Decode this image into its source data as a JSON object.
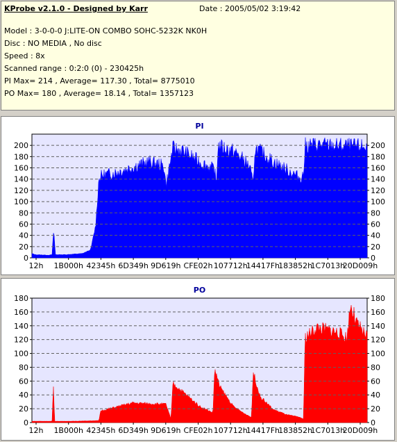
{
  "info": {
    "app_title": "KProbe v2.1.0 - Designed by Karr",
    "date": "Date : 2005/05/02 3:19:42",
    "model": "Model : 3-0-0-0 J:LITE-ON COMBO SOHC-5232K NK0H",
    "disc": "Disc : NO MEDIA , No disc",
    "speed": "Speed : 8x",
    "range": "Scanned range : 0:2:0 (0) - 230425h",
    "pi_stats": "PI Max= 214 , Average= 117.30 , Total= 8775010",
    "po_stats": "PO Max= 180 , Average= 18.14 , Total= 1357123"
  },
  "x_ticks": [
    "12h",
    "1B000h",
    "42345h",
    "6D349h",
    "9D619h",
    "CFE02h",
    "107712h",
    "14417Fh",
    "183852h",
    "1C7013h",
    "20D009h"
  ],
  "colors": {
    "pi": "#0000ff",
    "po": "#ff0000",
    "plot_bg": "#e6e6ff"
  },
  "chart_data": [
    {
      "type": "area",
      "title": "PI",
      "ylim": [
        0,
        220
      ],
      "yticks": [
        0,
        20,
        40,
        60,
        80,
        100,
        120,
        140,
        160,
        180,
        200
      ],
      "grid": true,
      "x": [
        0,
        0.01,
        0.05,
        0.06,
        0.065,
        0.07,
        0.1,
        0.15,
        0.175,
        0.19,
        0.2,
        0.21,
        0.25,
        0.3,
        0.35,
        0.38,
        0.395,
        0.4,
        0.42,
        0.45,
        0.5,
        0.545,
        0.55,
        0.555,
        0.575,
        0.6,
        0.63,
        0.65,
        0.66,
        0.665,
        0.68,
        0.72,
        0.76,
        0.8,
        0.81,
        0.815,
        0.85,
        0.9,
        1.0
      ],
      "values": [
        8,
        6,
        5,
        6,
        55,
        6,
        6,
        8,
        15,
        60,
        150,
        155,
        160,
        170,
        180,
        175,
        170,
        135,
        205,
        200,
        180,
        165,
        135,
        210,
        205,
        200,
        185,
        170,
        135,
        205,
        200,
        180,
        165,
        150,
        155,
        210,
        212,
        210,
        208
      ]
    },
    {
      "type": "area",
      "title": "PO",
      "ylim": [
        0,
        180
      ],
      "yticks": [
        0,
        20,
        40,
        60,
        80,
        100,
        120,
        140,
        160,
        180
      ],
      "grid": true,
      "x": [
        0,
        0.06,
        0.064,
        0.068,
        0.12,
        0.2,
        0.205,
        0.3,
        0.4,
        0.415,
        0.42,
        0.5,
        0.54,
        0.545,
        0.56,
        0.6,
        0.63,
        0.655,
        0.66,
        0.68,
        0.72,
        0.76,
        0.8,
        0.81,
        0.815,
        0.85,
        0.9,
        0.94,
        0.95,
        0.97,
        1.0
      ],
      "values": [
        2,
        2,
        55,
        2,
        2,
        3,
        18,
        30,
        28,
        5,
        60,
        25,
        15,
        82,
        55,
        25,
        15,
        8,
        78,
        40,
        20,
        12,
        8,
        5,
        130,
        145,
        140,
        130,
        180,
        150,
        130
      ]
    }
  ]
}
